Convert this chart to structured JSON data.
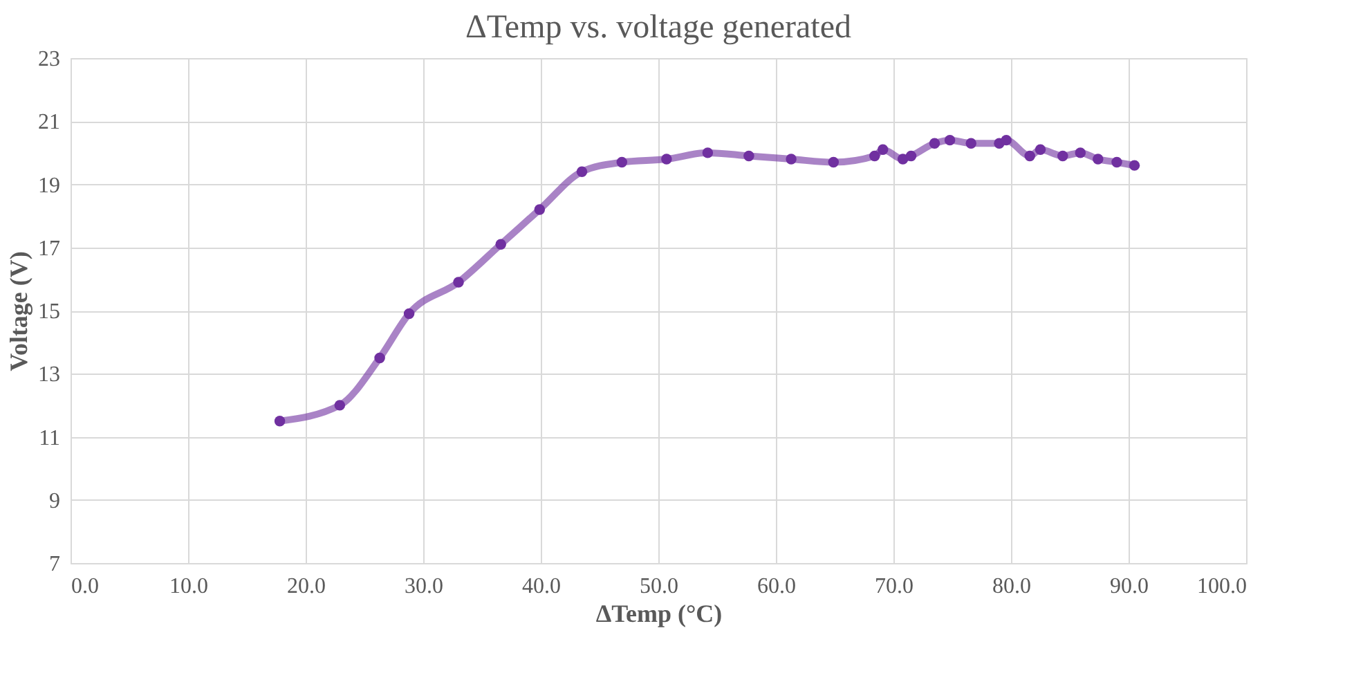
{
  "chart_data": {
    "type": "line",
    "title": "ΔTemp vs. voltage generated",
    "xlabel": "ΔTemp (°C)",
    "ylabel": "Voltage (V)",
    "x": [
      17.8,
      22.9,
      26.3,
      28.8,
      33.0,
      36.6,
      39.9,
      43.5,
      46.9,
      50.7,
      54.2,
      57.7,
      61.3,
      64.9,
      68.4,
      69.1,
      70.8,
      71.5,
      73.5,
      74.8,
      76.6,
      79.0,
      79.6,
      81.6,
      82.5,
      84.4,
      85.9,
      87.4,
      89.0,
      90.5
    ],
    "series": [
      {
        "color": "#7030a0",
        "values": [
          11.5,
          12.0,
          13.5,
          14.9,
          15.9,
          17.1,
          18.2,
          19.4,
          19.7,
          19.8,
          20.0,
          19.9,
          19.8,
          19.7,
          19.9,
          20.1,
          19.8,
          19.9,
          20.3,
          20.4,
          20.3,
          20.3,
          20.4,
          19.9,
          20.1,
          19.9,
          20.0,
          19.8,
          19.7,
          19.6
        ]
      }
    ],
    "xlim": [
      0,
      100
    ],
    "xticks": [
      {
        "value": 0,
        "label": "0.0"
      },
      {
        "value": 10,
        "label": "10.0"
      },
      {
        "value": 20,
        "label": "20.0"
      },
      {
        "value": 30,
        "label": "30.0"
      },
      {
        "value": 40,
        "label": "40.0"
      },
      {
        "value": 50,
        "label": "50.0"
      },
      {
        "value": 60,
        "label": "60.0"
      },
      {
        "value": 70,
        "label": "70.0"
      },
      {
        "value": 80,
        "label": "80.0"
      },
      {
        "value": 90,
        "label": "90.0"
      },
      {
        "value": 100,
        "label": "100.0"
      }
    ],
    "ylim": [
      7,
      23
    ],
    "yticks": [
      7,
      9,
      11,
      13,
      15,
      17,
      19,
      21,
      23
    ],
    "grid": true,
    "marker": "circle",
    "line_style": "solid"
  }
}
